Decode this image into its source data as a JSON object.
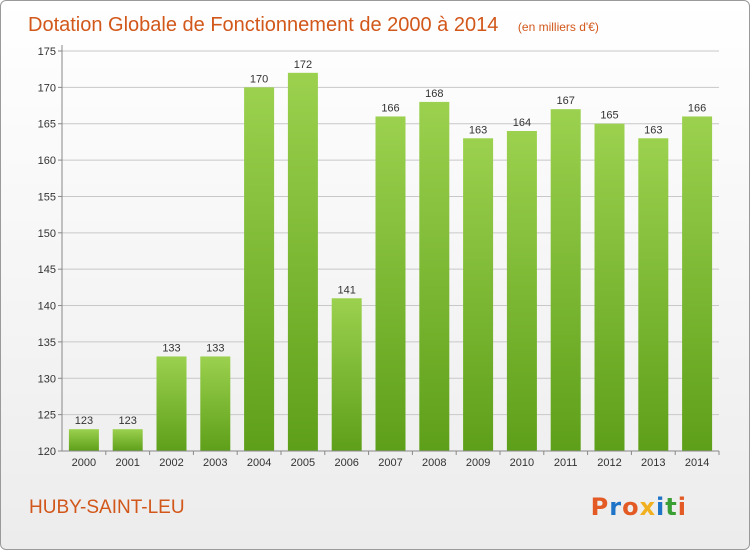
{
  "header": {
    "title": "Dotation Globale de Fonctionnement de 2000 à 2014",
    "unit_note": "(en milliers d'€)"
  },
  "footer": {
    "commune": "HUBY-SAINT-LEU",
    "logo": "Proxiti"
  },
  "colors": {
    "title": "#d2571a",
    "bar_top": "#9bd14e",
    "bar_bottom": "#5e9f19",
    "grid": "#c8c8c8",
    "logo_letters": [
      "#e35a24",
      "#1f74c8",
      "#e35a24",
      "#f0b020",
      "#1f74c8",
      "#3aa035",
      "#e35a24"
    ]
  },
  "chart_data": {
    "type": "bar",
    "categories": [
      "2000",
      "2001",
      "2002",
      "2003",
      "2004",
      "2005",
      "2006",
      "2007",
      "2008",
      "2009",
      "2010",
      "2011",
      "2012",
      "2013",
      "2014"
    ],
    "values": [
      123,
      123,
      133,
      133,
      170,
      172,
      141,
      166,
      168,
      163,
      164,
      167,
      165,
      163,
      166
    ],
    "ylim": [
      120,
      175
    ],
    "yticks": [
      120,
      125,
      130,
      135,
      140,
      145,
      150,
      155,
      160,
      165,
      170,
      175
    ],
    "grid": true,
    "show_data_labels": true
  }
}
